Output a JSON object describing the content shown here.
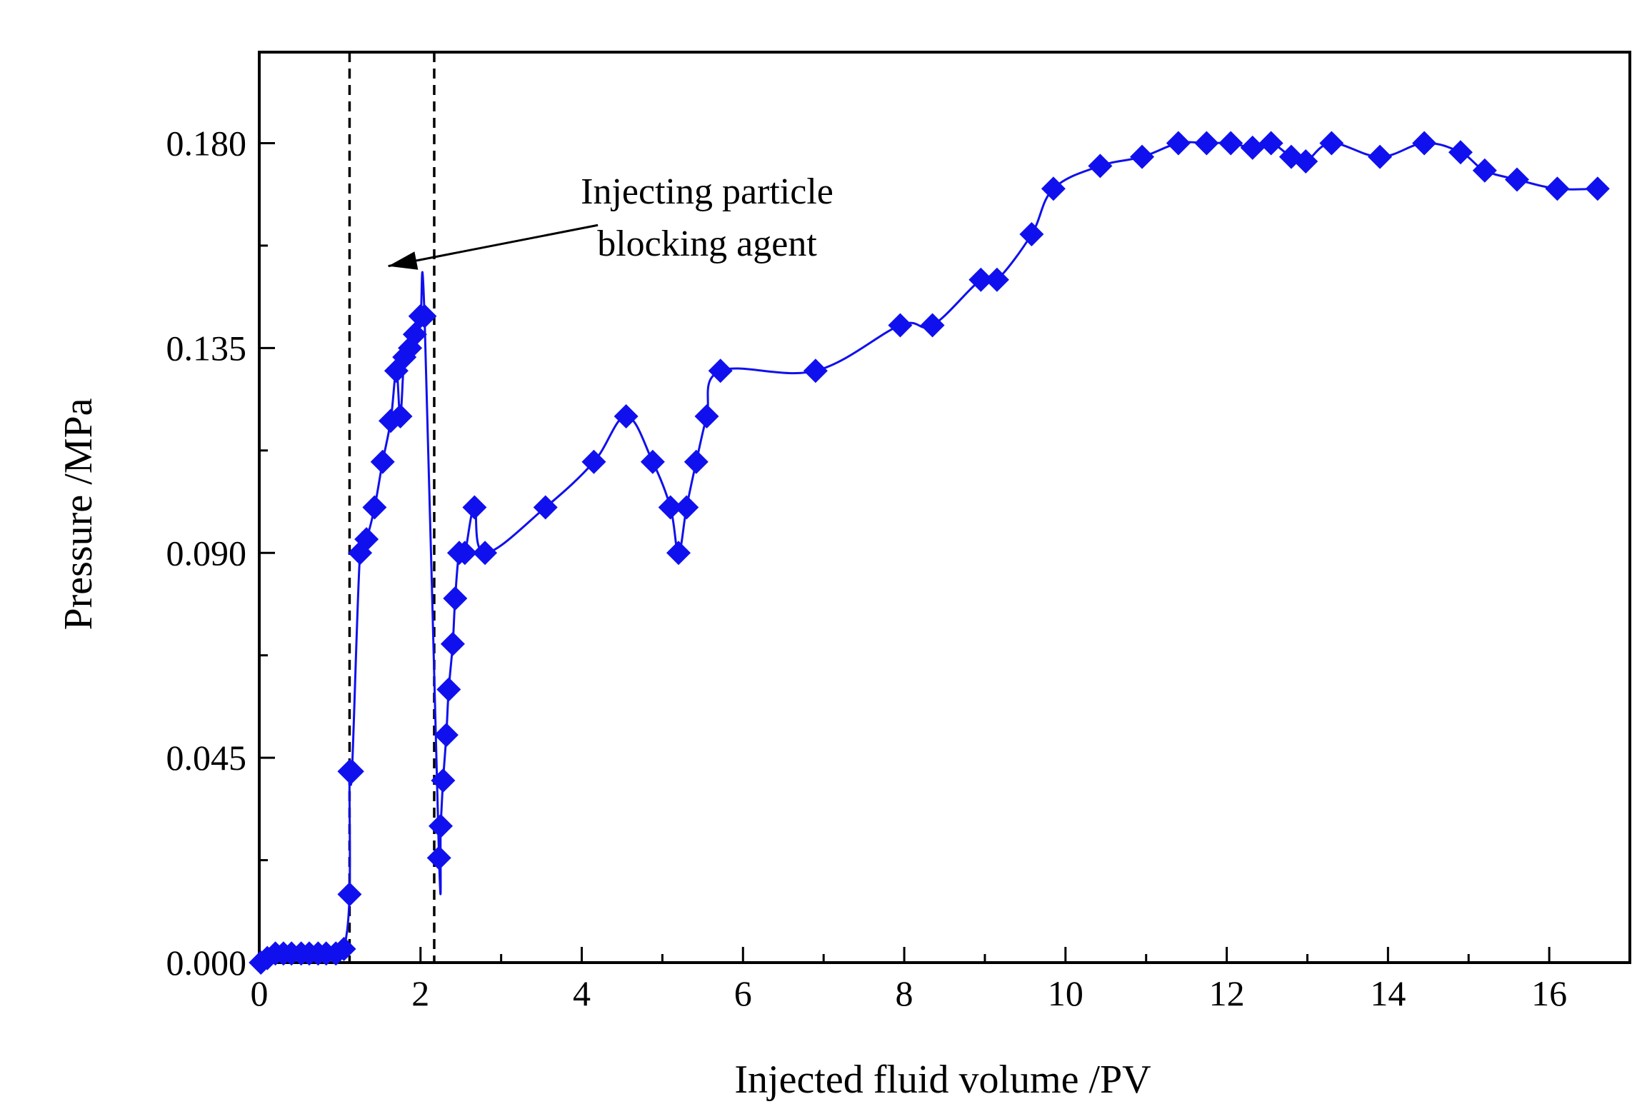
{
  "chart_data": {
    "type": "line",
    "title": "",
    "xlabel": "Injected fluid volume /PV",
    "ylabel": "Pressure /MPa",
    "xlim": [
      0,
      17
    ],
    "ylim": [
      0,
      0.2
    ],
    "x_ticks": [
      0,
      2,
      4,
      6,
      8,
      10,
      12,
      14,
      16
    ],
    "x_tick_labels": [
      "0",
      "2",
      "4",
      "6",
      "8",
      "10",
      "12",
      "14",
      "16"
    ],
    "y_ticks": [
      0,
      0.045,
      0.09,
      0.135,
      0.18
    ],
    "y_tick_labels": [
      "0.000",
      "0.045",
      "0.090",
      "0.135",
      "0.180"
    ],
    "grid": false,
    "vertical_reference_lines": [
      1.12,
      2.17
    ],
    "annotation": {
      "lines": [
        "Injecting particle",
        "blocking agent"
      ],
      "arrow_from": [
        4.2,
        0.162
      ],
      "arrow_to": [
        1.6,
        0.153
      ]
    },
    "series": [
      {
        "name": "Pressure",
        "color": "#1010ee",
        "marker": "diamond",
        "x": [
          0.02,
          0.1,
          0.2,
          0.3,
          0.4,
          0.52,
          0.62,
          0.73,
          0.83,
          0.95,
          1.05,
          1.12,
          1.12,
          1.15,
          1.25,
          1.33,
          1.43,
          1.53,
          1.63,
          1.7,
          1.75,
          1.8,
          1.87,
          1.93,
          2.0,
          2.05,
          2.23,
          2.25,
          2.28,
          2.32,
          2.35,
          2.4,
          2.43,
          2.48,
          2.55,
          2.67,
          2.8,
          3.55,
          4.15,
          4.55,
          4.88,
          5.1,
          5.2,
          5.3,
          5.42,
          5.55,
          5.72,
          6.9,
          7.95,
          8.35,
          8.95,
          9.15,
          9.58,
          9.85,
          10.43,
          10.95,
          11.4,
          11.75,
          12.05,
          12.32,
          12.55,
          12.8,
          12.98,
          13.3,
          13.9,
          14.45,
          14.9,
          15.2,
          15.6,
          16.1,
          16.6
        ],
        "y": [
          0.0,
          0.001,
          0.002,
          0.002,
          0.002,
          0.002,
          0.002,
          0.002,
          0.002,
          0.002,
          0.003,
          0.015,
          0.042,
          0.042,
          0.09,
          0.093,
          0.1,
          0.11,
          0.119,
          0.13,
          0.12,
          0.133,
          0.135,
          0.138,
          0.142,
          0.142,
          0.023,
          0.03,
          0.04,
          0.05,
          0.06,
          0.07,
          0.08,
          0.09,
          0.09,
          0.1,
          0.09,
          0.1,
          0.11,
          0.12,
          0.11,
          0.1,
          0.09,
          0.1,
          0.11,
          0.12,
          0.13,
          0.13,
          0.14,
          0.14,
          0.15,
          0.15,
          0.16,
          0.17,
          0.175,
          0.177,
          0.18,
          0.18,
          0.18,
          0.179,
          0.18,
          0.177,
          0.176,
          0.18,
          0.177,
          0.18,
          0.178,
          0.174,
          0.172,
          0.17,
          0.17
        ]
      }
    ]
  }
}
